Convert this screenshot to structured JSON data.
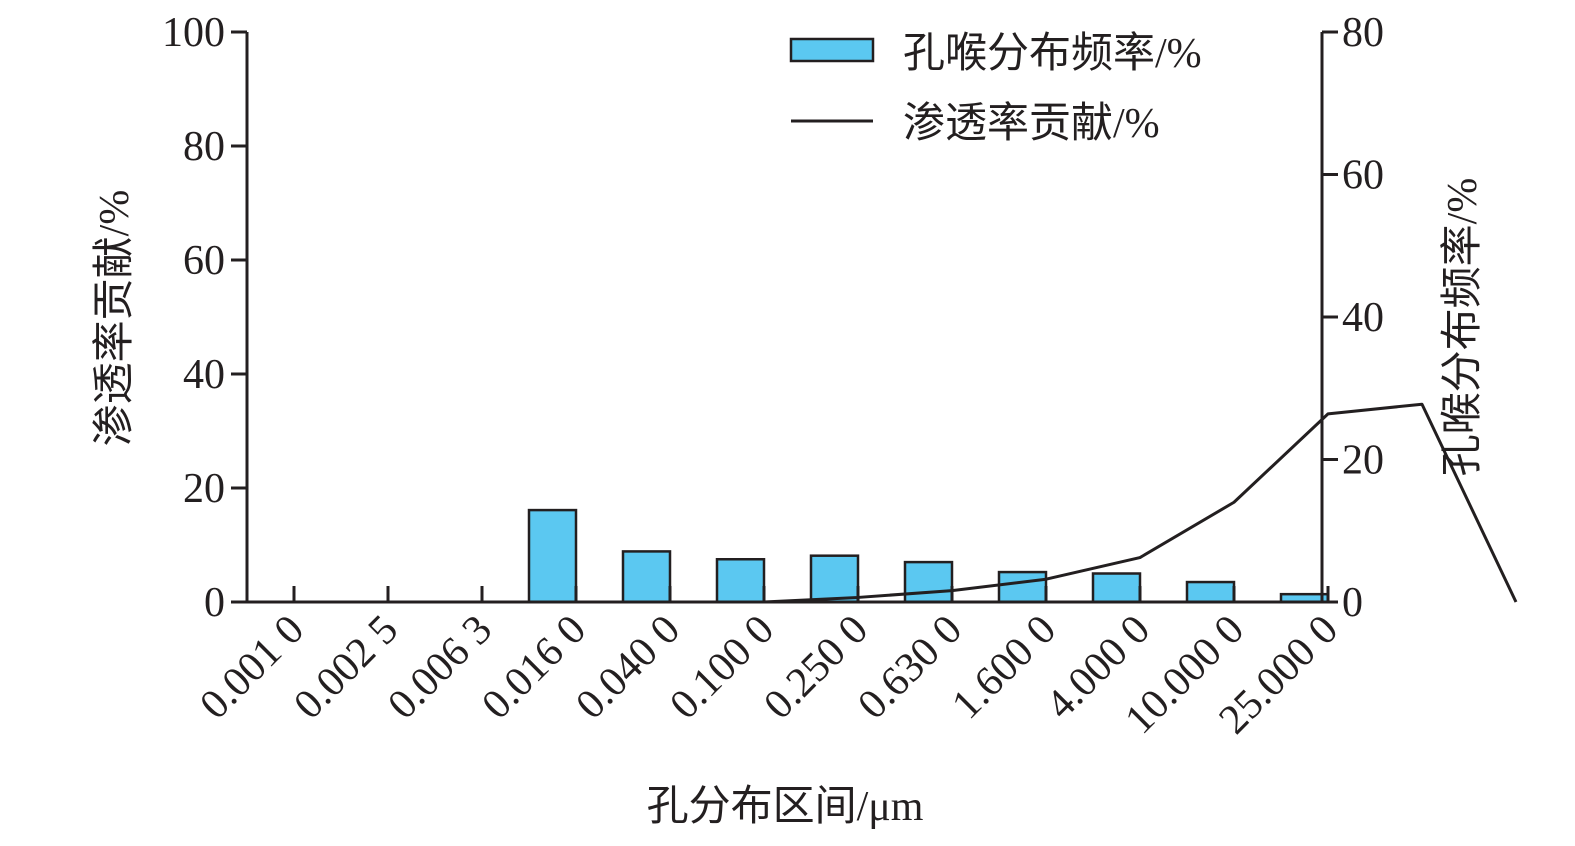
{
  "chart_data": {
    "type": "bar",
    "xlabel": "孔分布区间/μm",
    "ylabel_left": "渗透率贡献/%",
    "ylabel_right": "孔喉分布频率/%",
    "ylim_left": [
      0,
      100
    ],
    "ylim_right": [
      0,
      80
    ],
    "yticks_left": [
      "0",
      "20",
      "40",
      "60",
      "80",
      "100"
    ],
    "yticks_right": [
      "0",
      "20",
      "40",
      "60",
      "80"
    ],
    "grid": false,
    "legend_position": "top-right",
    "x_tick_labels": [
      "0.001 0",
      "0.002 5",
      "0.006 3",
      "0.016 0",
      "0.040 0",
      "0.100 0",
      "0.250 0",
      "0.630 0",
      "1.600 0",
      "4.000 0",
      "10.000 0",
      "25.000 0"
    ],
    "bar_colors": {
      "fill": "#5bc8f1",
      "stroke": "#231f20"
    },
    "line_color": "#231f20",
    "series": [
      {
        "name": "孔喉分布频率/%",
        "type": "bar",
        "axis": "right",
        "bins": [
          3.5,
          4.5,
          5.5,
          6.5,
          7.5,
          8.5,
          9.5,
          10.5,
          11.5
        ],
        "values": [
          12.9,
          7.1,
          6.0,
          6.5,
          5.6,
          4.2,
          4.0,
          2.8,
          1.1
        ]
      },
      {
        "name": "渗透率贡献/%",
        "type": "line",
        "axis": "left",
        "x": [
          5.0,
          6.0,
          7.0,
          8.0,
          9.0,
          10.0,
          11.0,
          12.0,
          13.0,
          14.0
        ],
        "y": [
          0,
          0,
          0.8,
          2.0,
          4.0,
          7.8,
          17.5,
          33.0,
          34.7,
          0
        ]
      }
    ]
  }
}
